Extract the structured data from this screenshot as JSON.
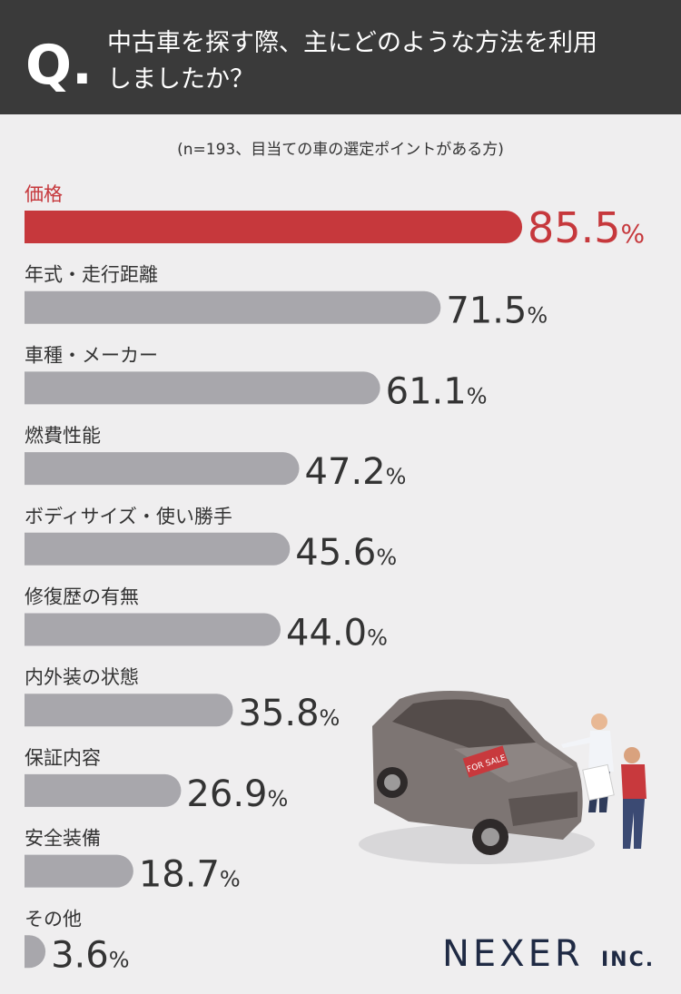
{
  "chart_data": {
    "type": "bar",
    "orientation": "horizontal",
    "title_marker": "Q.",
    "title_lines": [
      "中古車を探す際、主にどのような方法を利用",
      "しましたか？"
    ],
    "subtitle": "(n=193、目当ての車の選定ポイントがある方)",
    "categories": [
      "価格",
      "年式・走行距離",
      "車種・メーカー",
      "燃費性能",
      "ボディサイズ・使い勝手",
      "修復歴の有無",
      "内外装の状態",
      "保証内容",
      "安全装備",
      "その他"
    ],
    "values": [
      85.5,
      71.5,
      61.1,
      47.2,
      45.6,
      44.0,
      35.8,
      26.9,
      18.7,
      3.6
    ],
    "value_labels": [
      "85.5%",
      "71.5%",
      "61.1%",
      "47.2%",
      "45.6%",
      "44.0%",
      "35.8%",
      "26.9%",
      "18.7%",
      "3.6%"
    ],
    "colors": [
      "#c6383c",
      "#a8a7ac",
      "#a8a7ac",
      "#a8a7ac",
      "#a8a7ac",
      "#a8a7ac",
      "#a8a7ac",
      "#a8a7ac",
      "#a8a7ac",
      "#a8a7ac"
    ],
    "logo_text": "NEXER",
    "logo_suffix": "INC."
  }
}
